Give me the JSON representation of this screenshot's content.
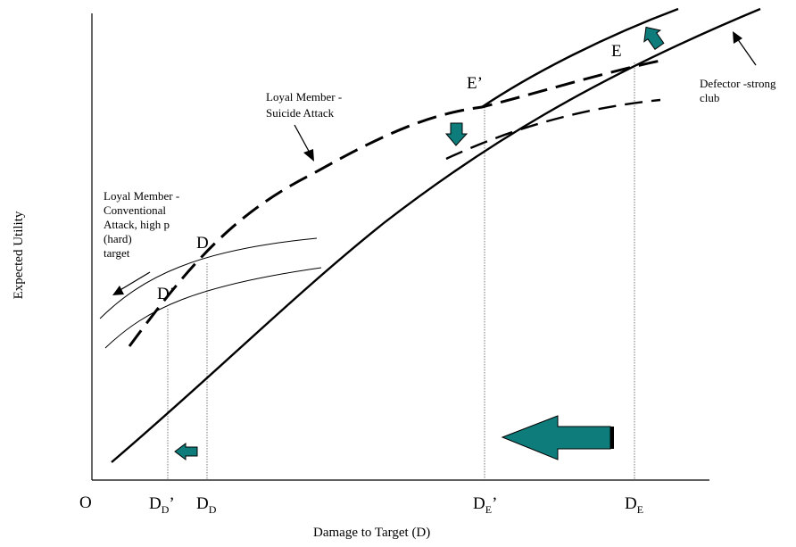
{
  "axes": {
    "x_label": "Damage to Target (D)",
    "y_label": "Expected Utility",
    "origin": "O"
  },
  "x_ticks": {
    "dd_prime": {
      "main": "D",
      "sub": "D",
      "suffix": "’"
    },
    "dd": {
      "main": "D",
      "sub": "D",
      "suffix": ""
    },
    "de_prime": {
      "main": "D",
      "sub": "E",
      "suffix": "’"
    },
    "de": {
      "main": "D",
      "sub": "E",
      "suffix": ""
    }
  },
  "points": {
    "d": "D",
    "d_prime": "D’",
    "e": "E",
    "e_prime": "E’"
  },
  "annotations": {
    "suicide": [
      "Loyal Member -",
      "Suicide Attack"
    ],
    "conventional": [
      "Loyal Member -",
      "Conventional",
      "Attack, high p",
      "(hard)",
      "target"
    ],
    "defector": [
      "Defector -strong",
      "club"
    ]
  },
  "colors": {
    "curve": "#000000",
    "arrow_fill": "#0e7c7b",
    "arrow_stroke": "#000000",
    "guide": "#555555"
  }
}
